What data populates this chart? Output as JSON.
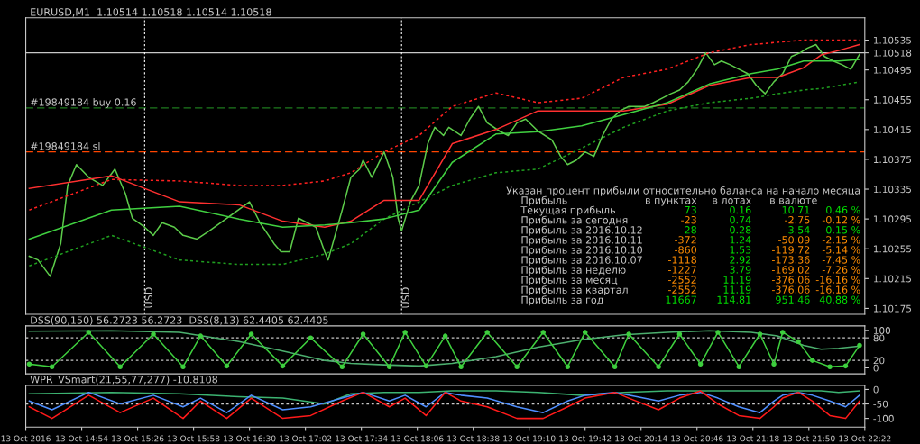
{
  "chart_data": [
    {
      "type": "line",
      "title": "EURUSD,M1  1.10514 1.10518 1.10514 1.10518",
      "series": [
        {
          "color": "#5ccb4a",
          "x": [
            "2016-10-13T14:24",
            "2016-10-13T14:29",
            "2016-10-13T14:36",
            "2016-10-13T14:42",
            "2016-10-13T14:46",
            "2016-10-13T14:51",
            "2016-10-13T14:58",
            "2016-10-13T15:06",
            "2016-10-13T15:13",
            "2016-10-13T15:19",
            "2016-10-13T15:23",
            "2016-10-13T15:30",
            "2016-10-13T15:35",
            "2016-10-13T15:40",
            "2016-10-13T15:47",
            "2016-10-13T15:52",
            "2016-10-13T16:00",
            "2016-10-13T16:07",
            "2016-10-13T16:17",
            "2016-10-13T16:30",
            "2016-10-13T16:36",
            "2016-10-13T16:44",
            "2016-10-13T16:48",
            "2016-10-13T16:53",
            "2016-10-13T16:58",
            "2016-10-13T17:08",
            "2016-10-13T17:13",
            "2016-10-13T17:15",
            "2016-10-13T17:23",
            "2016-10-13T17:28",
            "2016-10-13T17:33",
            "2016-10-13T17:35",
            "2016-10-13T17:40",
            "2016-10-13T17:47",
            "2016-10-13T17:52",
            "2016-10-13T17:55",
            "2016-10-13T17:57",
            "2016-10-13T18:02",
            "2016-10-13T18:07",
            "2016-10-13T18:12",
            "2016-10-13T18:16",
            "2016-10-13T18:21",
            "2016-10-13T18:24",
            "2016-10-13T18:31",
            "2016-10-13T18:36",
            "2016-10-13T18:41",
            "2016-10-13T18:46",
            "2016-10-13T18:53",
            "2016-10-13T18:58",
            "2016-10-13T19:03",
            "2016-10-13T19:08",
            "2016-10-13T19:15",
            "2016-10-13T19:23",
            "2016-10-13T19:28",
            "2016-10-13T19:32",
            "2016-10-13T19:37",
            "2016-10-13T19:42",
            "2016-10-13T19:47",
            "2016-10-13T19:52",
            "2016-10-13T19:57",
            "2016-10-13T20:02",
            "2016-10-13T20:07",
            "2016-10-13T20:12",
            "2016-10-13T20:16",
            "2016-10-13T20:21",
            "2016-10-13T20:26",
            "2016-10-13T20:31",
            "2016-10-13T20:36",
            "2016-10-13T20:41",
            "2016-10-13T20:46",
            "2016-10-13T20:51",
            "2016-10-13T20:56",
            "2016-10-13T21:00",
            "2016-10-13T21:05",
            "2016-10-13T21:10",
            "2016-10-13T21:15",
            "2016-10-13T21:20",
            "2016-10-13T21:25",
            "2016-10-13T21:30",
            "2016-10-13T21:35",
            "2016-10-13T21:40",
            "2016-10-13T21:45",
            "2016-10-13T21:49",
            "2016-10-13T21:54",
            "2016-10-13T21:59",
            "2016-10-13T22:04",
            "2016-10-13T22:09",
            "2016-10-13T22:14",
            "2016-10-13T22:19"
          ],
          "values": [
            1.10245,
            1.1024,
            1.10218,
            1.10262,
            1.1034,
            1.10368,
            1.10351,
            1.1034,
            1.10362,
            1.10329,
            1.10296,
            1.10284,
            1.10273,
            1.1029,
            1.10284,
            1.10273,
            1.10268,
            1.10279,
            1.10296,
            1.10318,
            1.1029,
            1.10262,
            1.10251,
            1.10251,
            1.10296,
            1.10284,
            1.10251,
            1.1024,
            1.10307,
            1.10351,
            1.10362,
            1.10374,
            1.10351,
            1.10385,
            1.10351,
            1.10296,
            1.10279,
            1.10318,
            1.1034,
            1.10396,
            1.10418,
            1.10407,
            1.10418,
            1.10407,
            1.10429,
            1.10446,
            1.10424,
            1.10413,
            1.10407,
            1.10424,
            1.10429,
            1.10413,
            1.10401,
            1.10379,
            1.10368,
            1.10374,
            1.10385,
            1.10379,
            1.10407,
            1.10429,
            1.1044,
            1.10446,
            1.10446,
            1.10446,
            1.10451,
            1.10457,
            1.10463,
            1.10468,
            1.10479,
            1.10496,
            1.10518,
            1.10502,
            1.10507,
            1.10502,
            1.10496,
            1.1049,
            1.10474,
            1.10463,
            1.10479,
            1.1049,
            1.10513,
            1.10518,
            1.10524,
            1.10529,
            1.10513,
            1.10507,
            1.10502,
            1.10496,
            1.10516
          ]
        },
        {
          "color": "#ff2020",
          "line_style": "dotted",
          "x": [
            "2016-10-13T14:24",
            "2016-10-13T15:11",
            "2016-10-13T15:50",
            "2016-10-13T16:24",
            "2016-10-13T16:49",
            "2016-10-13T17:13",
            "2016-10-13T17:28",
            "2016-10-13T17:47",
            "2016-10-13T18:07",
            "2016-10-13T18:26",
            "2016-10-13T18:51",
            "2016-10-13T19:15",
            "2016-10-13T19:40",
            "2016-10-13T20:04",
            "2016-10-13T20:29",
            "2016-10-13T20:53",
            "2016-10-13T21:17",
            "2016-10-13T21:32",
            "2016-10-13T21:47",
            "2016-10-13T21:57",
            "2016-10-13T22:07",
            "2016-10-13T22:19"
          ],
          "values": [
            1.10307,
            1.10348,
            1.10346,
            1.1034,
            1.1034,
            1.10346,
            1.10357,
            1.10385,
            1.10407,
            1.10446,
            1.10464,
            1.10451,
            1.10457,
            1.10485,
            1.10496,
            1.10518,
            1.10529,
            1.10532,
            1.10535,
            1.10535,
            1.10535,
            1.10535
          ]
        },
        {
          "color": "#1f9e1f",
          "line_style": "dotted",
          "x": [
            "2016-10-13T14:24",
            "2016-10-13T15:11",
            "2016-10-13T15:50",
            "2016-10-13T16:24",
            "2016-10-13T16:49",
            "2016-10-13T17:13",
            "2016-10-13T17:28",
            "2016-10-13T17:47",
            "2016-10-13T18:07",
            "2016-10-13T18:26",
            "2016-10-13T18:51",
            "2016-10-13T19:15",
            "2016-10-13T19:40",
            "2016-10-13T20:04",
            "2016-10-13T20:29",
            "2016-10-13T20:53",
            "2016-10-13T21:17",
            "2016-10-13T21:32",
            "2016-10-13T21:47",
            "2016-10-13T21:57",
            "2016-10-13T22:07",
            "2016-10-13T22:19"
          ],
          "values": [
            1.10232,
            1.10273,
            1.1024,
            1.10234,
            1.10234,
            1.10248,
            1.10262,
            1.10295,
            1.10318,
            1.1034,
            1.10357,
            1.10362,
            1.1039,
            1.10418,
            1.1044,
            1.10451,
            1.10457,
            1.10463,
            1.10468,
            1.1047,
            1.10474,
            1.10479
          ]
        },
        {
          "color": "#ff3030",
          "x": [
            "2016-10-13T14:24",
            "2016-10-13T15:11",
            "2016-10-13T15:50",
            "2016-10-13T16:24",
            "2016-10-13T16:49",
            "2016-10-13T17:13",
            "2016-10-13T17:28",
            "2016-10-13T17:47",
            "2016-10-13T18:07",
            "2016-10-13T18:26",
            "2016-10-13T18:51",
            "2016-10-13T19:15",
            "2016-10-13T19:40",
            "2016-10-13T20:04",
            "2016-10-13T20:29",
            "2016-10-13T20:53",
            "2016-10-13T21:17",
            "2016-10-13T21:32",
            "2016-10-13T21:47",
            "2016-10-13T21:57",
            "2016-10-13T22:07",
            "2016-10-13T22:19"
          ],
          "values": [
            1.10336,
            1.10353,
            1.10318,
            1.10314,
            1.10292,
            1.10284,
            1.10292,
            1.1032,
            1.1032,
            1.10396,
            1.10415,
            1.1044,
            1.1044,
            1.1044,
            1.10449,
            1.10474,
            1.10485,
            1.10485,
            1.10498,
            1.10515,
            1.10521,
            1.10529
          ]
        },
        {
          "color": "#40d040",
          "x": [
            "2016-10-13T14:24",
            "2016-10-13T15:11",
            "2016-10-13T15:50",
            "2016-10-13T16:24",
            "2016-10-13T16:49",
            "2016-10-13T17:13",
            "2016-10-13T17:28",
            "2016-10-13T17:47",
            "2016-10-13T18:07",
            "2016-10-13T18:26",
            "2016-10-13T18:51",
            "2016-10-13T19:15",
            "2016-10-13T19:40",
            "2016-10-13T20:04",
            "2016-10-13T20:29",
            "2016-10-13T20:53",
            "2016-10-13T21:17",
            "2016-10-13T21:32",
            "2016-10-13T21:47",
            "2016-10-13T21:57",
            "2016-10-13T22:07",
            "2016-10-13T22:19"
          ],
          "values": [
            1.10268,
            1.10307,
            1.10312,
            1.10295,
            1.10284,
            1.10287,
            1.1029,
            1.10295,
            1.10307,
            1.10371,
            1.10409,
            1.10412,
            1.1042,
            1.10435,
            1.10451,
            1.10476,
            1.1049,
            1.10496,
            1.10507,
            1.10507,
            1.10507,
            1.10509
          ]
        }
      ],
      "xlim": [
        "2016-10-13T14:22",
        "2016-10-13T22:22"
      ],
      "ylim": [
        1.10167,
        1.10565
      ],
      "yticks": [
        1.10175,
        {
          "value": 1.10215,
          "label": "1.10215"
        },
        1.10255,
        1.10295,
        1.10335,
        1.10375,
        1.10415,
        1.10455,
        1.10495,
        1.10518,
        1.10535
      ],
      "tick_labels": "y",
      "ref_lines": [
        {
          "axis": "y",
          "value": 1.10444,
          "label": "#19849184 buy 0.16",
          "color": "#1e7a1e",
          "line_style": "dashed"
        },
        {
          "axis": "y",
          "value": 1.10385,
          "label": "#19849184 sl",
          "color": "#ff4500",
          "line_style": "dashed"
        },
        {
          "axis": "y",
          "value": 1.10518,
          "color": "#c8c8c8",
          "line_style": "solid"
        },
        {
          "axis": "x",
          "value": "2016-10-13T15:30",
          "label": "USD",
          "color": "#ffffff",
          "line_style": "dotted"
        },
        {
          "axis": "x",
          "value": "2016-10-13T17:57",
          "label": "USD",
          "color": "#ffffff",
          "line_style": "dotted"
        }
      ],
      "annotations": [
        "Указан процент прибыли относительно баланса на начало месяца",
        "Прибыль",
        "в пунктах",
        "в лотах",
        "в валюте",
        "Текущая прибыль",
        "73",
        "0.16",
        "10.71",
        "0.46 %",
        "Прибыль за сегодня",
        "-23",
        "0.74",
        "-2.75",
        "-0.12 %",
        "Прибыль за 2016.10.12",
        "28",
        "0.28",
        "3.54",
        "0.15 %",
        "Прибыль за 2016.10.11",
        "-372",
        "1.24",
        "-50.09",
        "-2.15 %",
        "Прибыль за 2016.10.10",
        "-860",
        "1.53",
        "-119.72",
        "-5.14 %",
        "Прибыль за 2016.10.07",
        "-1118",
        "2.92",
        "-173.36",
        "-7.45 %",
        "Прибыль за неделю",
        "-1227",
        "3.79",
        "-169.02",
        "-7.26 %",
        "Прибыль за месяц",
        "-2552",
        "11.19",
        "-376.06",
        "-16.16 %",
        "Прибыль за квартал",
        "-2552",
        "11.19",
        "-376.06",
        "-16.16 %",
        "Прибыль за год",
        "11667",
        "114.81",
        "951.46",
        "40.88 %"
      ]
    },
    {
      "type": "line",
      "title": "DSS(90,150) 56.2723 56.2723  DSS(8,13) 62.4405 62.4405",
      "series": [
        {
          "color": "#4caf6e",
          "x": [
            "2016-10-13T14:24",
            "2016-10-13T15:11",
            "2016-10-13T15:50",
            "2016-10-13T16:24",
            "2016-10-13T16:49",
            "2016-10-13T17:13",
            "2016-10-13T17:28",
            "2016-10-13T17:47",
            "2016-10-13T18:07",
            "2016-10-13T18:26",
            "2016-10-13T18:51",
            "2016-10-13T19:15",
            "2016-10-13T19:40",
            "2016-10-13T20:04",
            "2016-10-13T20:29",
            "2016-10-13T20:53",
            "2016-10-13T21:17",
            "2016-10-13T21:32",
            "2016-10-13T21:47",
            "2016-10-13T21:57",
            "2016-10-13T22:07",
            "2016-10-13T22:19"
          ],
          "values": [
            98,
            99,
            95,
            70,
            45,
            20,
            12,
            8,
            5,
            12,
            30,
            55,
            75,
            88,
            95,
            99,
            95,
            85,
            60,
            50,
            52,
            58
          ]
        },
        {
          "color": "#3ecf3e",
          "marker": "circle",
          "x": [
            "2016-10-13T14:24",
            "2016-10-13T14:37",
            "2016-10-13T14:58",
            "2016-10-13T15:16",
            "2016-10-13T15:35",
            "2016-10-13T15:52",
            "2016-10-13T16:02",
            "2016-10-13T16:17",
            "2016-10-13T16:31",
            "2016-10-13T16:49",
            "2016-10-13T17:05",
            "2016-10-13T17:23",
            "2016-10-13T17:35",
            "2016-10-13T17:50",
            "2016-10-13T17:59",
            "2016-10-13T18:11",
            "2016-10-13T18:22",
            "2016-10-13T18:31",
            "2016-10-13T18:46",
            "2016-10-13T19:03",
            "2016-10-13T19:18",
            "2016-10-13T19:32",
            "2016-10-13T19:42",
            "2016-10-13T19:59",
            "2016-10-13T20:07",
            "2016-10-13T20:24",
            "2016-10-13T20:36",
            "2016-10-13T20:48",
            "2016-10-13T20:58",
            "2016-10-13T21:10",
            "2016-10-13T21:22",
            "2016-10-13T21:30",
            "2016-10-13T21:35",
            "2016-10-13T21:44",
            "2016-10-13T21:52",
            "2016-10-13T22:02",
            "2016-10-13T22:11",
            "2016-10-13T22:19"
          ],
          "values": [
            10,
            3,
            95,
            3,
            90,
            3,
            85,
            5,
            90,
            5,
            80,
            3,
            90,
            3,
            95,
            5,
            85,
            3,
            95,
            3,
            95,
            3,
            95,
            3,
            90,
            3,
            90,
            10,
            95,
            3,
            90,
            10,
            95,
            70,
            20,
            3,
            5,
            60
          ]
        }
      ],
      "xlim": [
        "2016-10-13T14:22",
        "2016-10-13T22:22"
      ],
      "ylim": [
        -16,
        112
      ],
      "yticks": [
        0,
        20,
        80,
        100
      ],
      "tick_labels": "y",
      "ref_lines": [
        {
          "axis": "y",
          "value": 80,
          "color": "#c8c8c8",
          "line_style": "dotted"
        },
        {
          "axis": "y",
          "value": 20,
          "color": "#c8c8c8",
          "line_style": "dotted"
        }
      ]
    },
    {
      "type": "line",
      "title": "WPR_VSmart(21,55,77,277) -10.8108",
      "series": [
        {
          "color": "#3cb371",
          "x": [
            "2016-10-13T14:24",
            "2016-10-13T15:11",
            "2016-10-13T15:50",
            "2016-10-13T16:24",
            "2016-10-13T16:49",
            "2016-10-13T17:13",
            "2016-10-13T17:28",
            "2016-10-13T17:47",
            "2016-10-13T18:07",
            "2016-10-13T18:26",
            "2016-10-13T18:51",
            "2016-10-13T19:15",
            "2016-10-13T19:40",
            "2016-10-13T20:04",
            "2016-10-13T20:29",
            "2016-10-13T20:53",
            "2016-10-13T21:17",
            "2016-10-13T21:32",
            "2016-10-13T21:47",
            "2016-10-13T21:57",
            "2016-10-13T22:07",
            "2016-10-13T22:19"
          ],
          "values": [
            -15,
            -10,
            -15,
            -25,
            -30,
            -50,
            -15,
            -10,
            -10,
            -5,
            -5,
            -10,
            -20,
            -10,
            -5,
            -5,
            -5,
            -5,
            -5,
            -5,
            -10,
            -5
          ]
        },
        {
          "color": "#4f8fff",
          "x": [
            "2016-10-13T14:24",
            "2016-10-13T14:37",
            "2016-10-13T14:58",
            "2016-10-13T15:16",
            "2016-10-13T15:35",
            "2016-10-13T15:52",
            "2016-10-13T16:02",
            "2016-10-13T16:17",
            "2016-10-13T16:31",
            "2016-10-13T16:49",
            "2016-10-13T17:05",
            "2016-10-13T17:23",
            "2016-10-13T17:35",
            "2016-10-13T17:50",
            "2016-10-13T17:59",
            "2016-10-13T18:11",
            "2016-10-13T18:22",
            "2016-10-13T18:31",
            "2016-10-13T18:46",
            "2016-10-13T19:03",
            "2016-10-13T19:18",
            "2016-10-13T19:32",
            "2016-10-13T19:42",
            "2016-10-13T19:59",
            "2016-10-13T20:07",
            "2016-10-13T20:24",
            "2016-10-13T20:36",
            "2016-10-13T20:48",
            "2016-10-13T20:58",
            "2016-10-13T21:10",
            "2016-10-13T21:22",
            "2016-10-13T21:30",
            "2016-10-13T21:35",
            "2016-10-13T21:44",
            "2016-10-13T21:52",
            "2016-10-13T22:02",
            "2016-10-13T22:11",
            "2016-10-13T22:19"
          ],
          "values": [
            -40,
            -70,
            -10,
            -50,
            -20,
            -60,
            -30,
            -80,
            -20,
            -70,
            -60,
            -30,
            -10,
            -40,
            -20,
            -60,
            -10,
            -20,
            -30,
            -60,
            -80,
            -40,
            -20,
            -10,
            -20,
            -40,
            -20,
            -10,
            -30,
            -60,
            -80,
            -40,
            -20,
            -10,
            -20,
            -40,
            -60,
            -20
          ]
        },
        {
          "color": "#ff1a1a",
          "x": [
            "2016-10-13T14:24",
            "2016-10-13T14:37",
            "2016-10-13T14:58",
            "2016-10-13T15:16",
            "2016-10-13T15:35",
            "2016-10-13T15:52",
            "2016-10-13T16:02",
            "2016-10-13T16:17",
            "2016-10-13T16:31",
            "2016-10-13T16:49",
            "2016-10-13T17:05",
            "2016-10-13T17:23",
            "2016-10-13T17:35",
            "2016-10-13T17:50",
            "2016-10-13T17:59",
            "2016-10-13T18:11",
            "2016-10-13T18:22",
            "2016-10-13T18:31",
            "2016-10-13T18:46",
            "2016-10-13T19:03",
            "2016-10-13T19:18",
            "2016-10-13T19:32",
            "2016-10-13T19:42",
            "2016-10-13T19:59",
            "2016-10-13T20:07",
            "2016-10-13T20:24",
            "2016-10-13T20:36",
            "2016-10-13T20:48",
            "2016-10-13T20:58",
            "2016-10-13T21:10",
            "2016-10-13T21:22",
            "2016-10-13T21:30",
            "2016-10-13T21:35",
            "2016-10-13T21:44",
            "2016-10-13T21:52",
            "2016-10-13T22:02",
            "2016-10-13T22:11",
            "2016-10-13T22:19"
          ],
          "values": [
            -60,
            -100,
            -20,
            -80,
            -30,
            -100,
            -40,
            -100,
            -30,
            -100,
            -90,
            -40,
            -10,
            -60,
            -30,
            -90,
            -10,
            -40,
            -60,
            -100,
            -100,
            -60,
            -30,
            -10,
            -30,
            -70,
            -30,
            -5,
            -50,
            -90,
            -100,
            -60,
            -30,
            -10,
            -40,
            -90,
            -100,
            -40
          ]
        }
      ],
      "xlim": [
        "2016-10-13T14:22",
        "2016-10-13T22:22"
      ],
      "xticks": [
        {
          "value": "2016-10-13T14:22",
          "label": "13 Oct 2016"
        },
        {
          "value": "2016-10-13T14:54",
          "label": "13 Oct 14:54"
        },
        {
          "value": "2016-10-13T15:26",
          "label": "13 Oct 15:26"
        },
        {
          "value": "2016-10-13T15:58",
          "label": "13 Oct 15:58"
        },
        {
          "value": "2016-10-13T16:30",
          "label": "13 Oct 16:30"
        },
        {
          "value": "2016-10-13T17:02",
          "label": "13 Oct 17:02"
        },
        {
          "value": "2016-10-13T17:34",
          "label": "13 Oct 17:34"
        },
        {
          "value": "2016-10-13T18:06",
          "label": "13 Oct 18:06"
        },
        {
          "value": "2016-10-13T18:38",
          "label": "13 Oct 18:38"
        },
        {
          "value": "2016-10-13T19:10",
          "label": "13 Oct 19:10"
        },
        {
          "value": "2016-10-13T19:42",
          "label": "13 Oct 19:42"
        },
        {
          "value": "2016-10-13T20:14",
          "label": "13 Oct 20:14"
        },
        {
          "value": "2016-10-13T20:46",
          "label": "13 Oct 20:46"
        },
        {
          "value": "2016-10-13T21:18",
          "label": "13 Oct 21:18"
        },
        {
          "value": "2016-10-13T21:50",
          "label": "13 Oct 21:50"
        },
        {
          "value": "2016-10-13T22:22",
          "label": "13 Oct 22:22"
        }
      ],
      "ylim": [
        -130,
        14
      ],
      "yticks": [
        0,
        -50,
        -100
      ],
      "ref_lines": [
        {
          "axis": "y",
          "value": -50,
          "color": "#c8c8c8",
          "line_style": "dotted"
        }
      ]
    }
  ]
}
